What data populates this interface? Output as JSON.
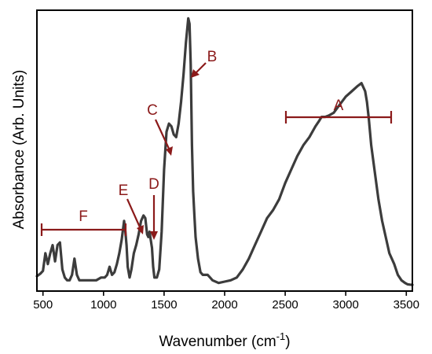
{
  "chart_data": {
    "type": "line",
    "xlabel_main": "Wavenumber (cm",
    "xlabel_sup": "-1",
    "xlabel_close": ")",
    "ylabel": "Absorbance (Arb. Units)",
    "xlim": [
      450,
      3550
    ],
    "ylim": [
      -0.02,
      1.02
    ],
    "x_ticks": [
      500,
      1000,
      1500,
      2000,
      2500,
      3000,
      3500
    ],
    "y_ticks_visible": false,
    "grid": false,
    "line_color": "#3c3c3c",
    "annotation_color": "#8b1a1a",
    "series": [
      {
        "x": [
          450,
          480,
          500,
          520,
          540,
          560,
          580,
          600,
          620,
          640,
          660,
          680,
          700,
          720,
          740,
          760,
          780,
          800,
          830,
          860,
          900,
          940,
          980,
          1010,
          1030,
          1050,
          1070,
          1090,
          1110,
          1130,
          1150,
          1170,
          1180,
          1190,
          1200,
          1215,
          1230,
          1250,
          1270,
          1290,
          1310,
          1330,
          1345,
          1360,
          1370,
          1380,
          1390,
          1400,
          1410,
          1420,
          1440,
          1460,
          1480,
          1500,
          1520,
          1540,
          1560,
          1580,
          1600,
          1620,
          1640,
          1660,
          1680,
          1700,
          1710,
          1720,
          1730,
          1740,
          1750,
          1760,
          1780,
          1800,
          1820,
          1840,
          1860,
          1880,
          1900,
          1950,
          2000,
          2050,
          2100,
          2150,
          2200,
          2250,
          2300,
          2350,
          2400,
          2450,
          2500,
          2550,
          2600,
          2650,
          2700,
          2750,
          2780,
          2800,
          2830,
          2860,
          2900,
          2950,
          3000,
          3050,
          3100,
          3130,
          3160,
          3175,
          3190,
          3210,
          3240,
          3270,
          3300,
          3330,
          3360,
          3400,
          3430,
          3460,
          3490,
          3510,
          3530,
          3550
        ],
        "y": [
          0.035,
          0.045,
          0.055,
          0.12,
          0.08,
          0.12,
          0.15,
          0.09,
          0.15,
          0.16,
          0.06,
          0.03,
          0.02,
          0.02,
          0.04,
          0.1,
          0.04,
          0.02,
          0.02,
          0.02,
          0.02,
          0.02,
          0.03,
          0.03,
          0.04,
          0.07,
          0.04,
          0.05,
          0.08,
          0.12,
          0.17,
          0.24,
          0.2,
          0.15,
          0.07,
          0.03,
          0.06,
          0.12,
          0.15,
          0.19,
          0.24,
          0.26,
          0.25,
          0.19,
          0.18,
          0.2,
          0.17,
          0.14,
          0.07,
          0.03,
          0.03,
          0.06,
          0.2,
          0.43,
          0.57,
          0.6,
          0.59,
          0.56,
          0.55,
          0.6,
          0.68,
          0.78,
          0.9,
          0.99,
          0.97,
          0.82,
          0.52,
          0.35,
          0.26,
          0.18,
          0.1,
          0.05,
          0.04,
          0.04,
          0.04,
          0.03,
          0.02,
          0.01,
          0.015,
          0.02,
          0.03,
          0.06,
          0.1,
          0.15,
          0.2,
          0.25,
          0.28,
          0.32,
          0.38,
          0.43,
          0.48,
          0.52,
          0.55,
          0.59,
          0.61,
          0.625,
          0.625,
          0.63,
          0.64,
          0.67,
          0.7,
          0.72,
          0.74,
          0.75,
          0.72,
          0.68,
          0.62,
          0.52,
          0.42,
          0.32,
          0.24,
          0.18,
          0.12,
          0.08,
          0.04,
          0.02,
          0.01,
          0.005,
          0.004,
          0.003
        ]
      }
    ],
    "annotations": {
      "A": "A",
      "B": "B",
      "C": "C",
      "D": "D",
      "E": "E",
      "F": "F"
    }
  }
}
